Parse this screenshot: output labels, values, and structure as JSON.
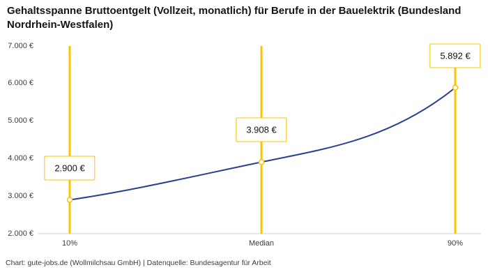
{
  "footer": "Chart: gute-jobs.de (Wollmilchsau GmbH) | Datenquelle: Bundesagentur für Arbeit",
  "chart_data": {
    "type": "line",
    "title": "Gehaltsspanne Bruttoentgelt (Vollzeit, monatlich) für Berufe in der Bauelektrik (Bundesland Nordrhein-Westfalen)",
    "categories": [
      "10%",
      "Median",
      "90%"
    ],
    "values": [
      2900,
      3908,
      5892
    ],
    "value_labels": [
      "2.900 €",
      "3.908 €",
      "5.892 €"
    ],
    "ylim": [
      2000,
      7000
    ],
    "y_ticks": [
      2000,
      3000,
      4000,
      5000,
      6000,
      7000
    ],
    "y_tick_labels": [
      "2.000 €",
      "3.000 €",
      "4.000 €",
      "5.000 €",
      "6.000 €",
      "7.000 €"
    ],
    "xlabel": "",
    "ylabel": "",
    "grid": false,
    "legend": false,
    "colors": {
      "line": "#2a3f8f",
      "marker_fill": "#ffffff",
      "accent_yellow": "#fdc300",
      "axis": "#cfcfcf",
      "text": "#3c3c3c"
    }
  }
}
